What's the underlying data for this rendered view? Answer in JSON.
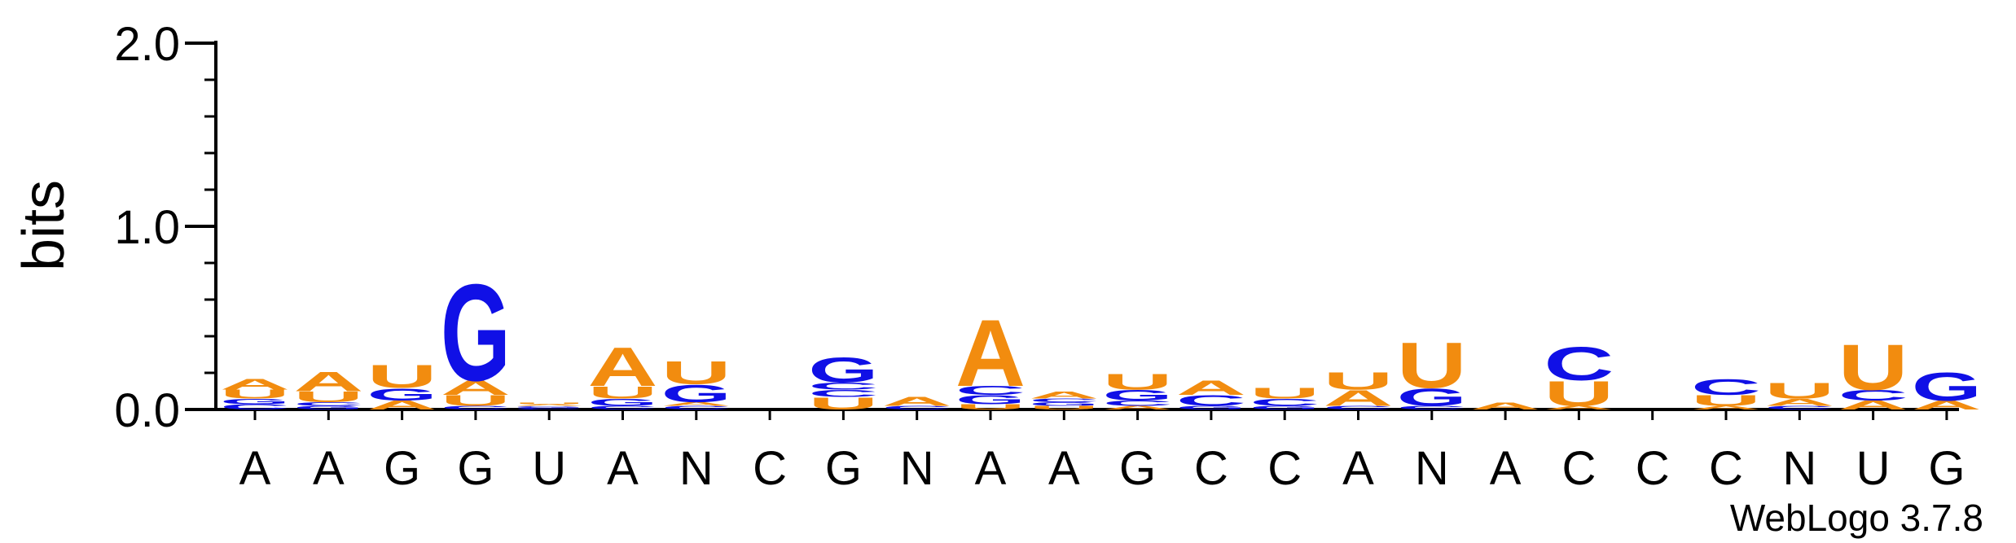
{
  "chart_data": {
    "type": "sequence-logo",
    "ylabel": "bits",
    "ylim": [
      0,
      2
    ],
    "yticks": [
      {
        "value": 0,
        "label": "0.0"
      },
      {
        "value": 1,
        "label": "1.0"
      },
      {
        "value": 2,
        "label": "2.0"
      }
    ],
    "credit": "WebLogo 3.7.8",
    "colors": {
      "A": "#f28c0f",
      "U": "#f28c0f",
      "G": "#1010e6",
      "C": "#1010e6",
      "axis": "#000000"
    },
    "positions": [
      {
        "label": "A",
        "stack": [
          {
            "letter": "C",
            "bits": 0.03
          },
          {
            "letter": "G",
            "bits": 0.03
          },
          {
            "letter": "U",
            "bits": 0.05
          },
          {
            "letter": "A",
            "bits": 0.06
          }
        ]
      },
      {
        "label": "A",
        "stack": [
          {
            "letter": "G",
            "bits": 0.02
          },
          {
            "letter": "C",
            "bits": 0.02
          },
          {
            "letter": "U",
            "bits": 0.06
          },
          {
            "letter": "A",
            "bits": 0.11
          }
        ]
      },
      {
        "label": "G",
        "stack": [
          {
            "letter": "A",
            "bits": 0.05
          },
          {
            "letter": "G",
            "bits": 0.07
          },
          {
            "letter": "U",
            "bits": 0.13
          }
        ]
      },
      {
        "label": "G",
        "stack": [
          {
            "letter": "C",
            "bits": 0.02
          },
          {
            "letter": "U",
            "bits": 0.06
          },
          {
            "letter": "A",
            "bits": 0.08
          },
          {
            "letter": "G",
            "bits": 0.55
          }
        ]
      },
      {
        "label": "U",
        "stack": [
          {
            "letter": "C",
            "bits": 0.01
          },
          {
            "letter": "G",
            "bits": 0.01
          },
          {
            "letter": "A",
            "bits": 0.01
          },
          {
            "letter": "U",
            "bits": 0.01
          }
        ]
      },
      {
        "label": "A",
        "stack": [
          {
            "letter": "C",
            "bits": 0.02
          },
          {
            "letter": "G",
            "bits": 0.04
          },
          {
            "letter": "U",
            "bits": 0.07
          },
          {
            "letter": "A",
            "bits": 0.22
          }
        ]
      },
      {
        "label": "N",
        "stack": [
          {
            "letter": "C",
            "bits": 0.02
          },
          {
            "letter": "A",
            "bits": 0.02
          },
          {
            "letter": "G",
            "bits": 0.1
          },
          {
            "letter": "U",
            "bits": 0.13
          }
        ]
      },
      {
        "label": "C",
        "stack": []
      },
      {
        "label": "G",
        "stack": [
          {
            "letter": "U",
            "bits": 0.07
          },
          {
            "letter": "C",
            "bits": 0.04
          },
          {
            "letter": "C",
            "bits": 0.04
          },
          {
            "letter": "G",
            "bits": 0.14
          }
        ]
      },
      {
        "label": "N",
        "stack": [
          {
            "letter": "C",
            "bits": 0.02
          },
          {
            "letter": "A",
            "bits": 0.05
          }
        ]
      },
      {
        "label": "A",
        "stack": [
          {
            "letter": "U",
            "bits": 0.03
          },
          {
            "letter": "G",
            "bits": 0.05
          },
          {
            "letter": "C",
            "bits": 0.05
          },
          {
            "letter": "A",
            "bits": 0.38
          }
        ]
      },
      {
        "label": "A",
        "stack": [
          {
            "letter": "U",
            "bits": 0.02
          },
          {
            "letter": "G",
            "bits": 0.02
          },
          {
            "letter": "C",
            "bits": 0.02
          },
          {
            "letter": "A",
            "bits": 0.04
          }
        ]
      },
      {
        "label": "G",
        "stack": [
          {
            "letter": "A",
            "bits": 0.02
          },
          {
            "letter": "C",
            "bits": 0.03
          },
          {
            "letter": "G",
            "bits": 0.06
          },
          {
            "letter": "U",
            "bits": 0.09
          }
        ]
      },
      {
        "label": "C",
        "stack": [
          {
            "letter": "G",
            "bits": 0.02
          },
          {
            "letter": "C",
            "bits": 0.06
          },
          {
            "letter": "A",
            "bits": 0.08
          }
        ]
      },
      {
        "label": "C",
        "stack": [
          {
            "letter": "G",
            "bits": 0.02
          },
          {
            "letter": "C",
            "bits": 0.04
          },
          {
            "letter": "U",
            "bits": 0.06
          }
        ]
      },
      {
        "label": "A",
        "stack": [
          {
            "letter": "C",
            "bits": 0.02
          },
          {
            "letter": "A",
            "bits": 0.09
          },
          {
            "letter": "U",
            "bits": 0.1
          }
        ]
      },
      {
        "label": "N",
        "stack": [
          {
            "letter": "C",
            "bits": 0.02
          },
          {
            "letter": "G",
            "bits": 0.1
          },
          {
            "letter": "U",
            "bits": 0.26
          }
        ]
      },
      {
        "label": "A",
        "stack": [
          {
            "letter": "A",
            "bits": 0.04
          }
        ]
      },
      {
        "label": "C",
        "stack": [
          {
            "letter": "A",
            "bits": 0.02
          },
          {
            "letter": "U",
            "bits": 0.14
          },
          {
            "letter": "C",
            "bits": 0.19
          }
        ]
      },
      {
        "label": "C",
        "stack": []
      },
      {
        "label": "C",
        "stack": [
          {
            "letter": "A",
            "bits": 0.02
          },
          {
            "letter": "U",
            "bits": 0.06
          },
          {
            "letter": "C",
            "bits": 0.09
          }
        ]
      },
      {
        "label": "N",
        "stack": [
          {
            "letter": "C",
            "bits": 0.02
          },
          {
            "letter": "A",
            "bits": 0.04
          },
          {
            "letter": "U",
            "bits": 0.09
          }
        ]
      },
      {
        "label": "U",
        "stack": [
          {
            "letter": "A",
            "bits": 0.05
          },
          {
            "letter": "C",
            "bits": 0.06
          },
          {
            "letter": "U",
            "bits": 0.26
          }
        ]
      },
      {
        "label": "G",
        "stack": [
          {
            "letter": "A",
            "bits": 0.05
          },
          {
            "letter": "G",
            "bits": 0.16
          }
        ]
      }
    ]
  }
}
